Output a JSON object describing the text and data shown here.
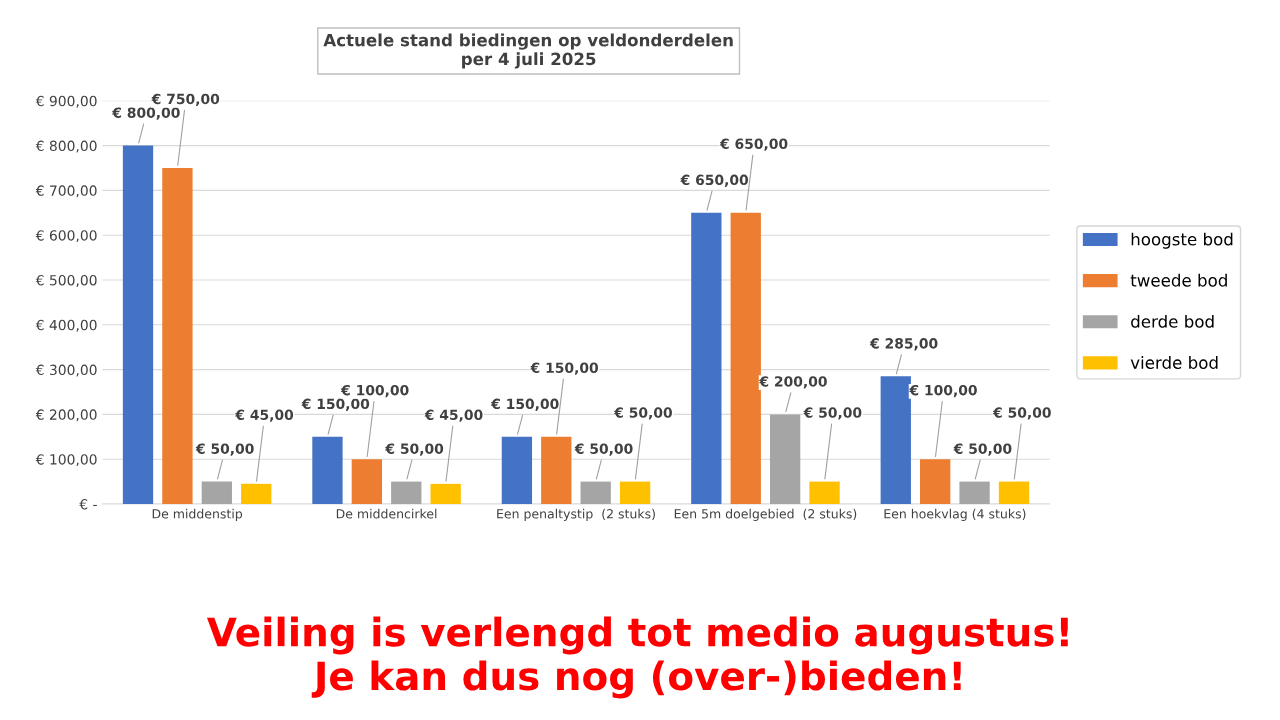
{
  "chart_data": {
    "type": "bar",
    "title": "Actuele stand biedingen op veldonderdelen\nper 4 juli 2025",
    "categories": [
      "De middenstip",
      "De middencirkel",
      "Een penaltystip  (2 stuks)",
      "Een 5m doelgebied  (2 stuks)",
      "Een hoekvlag (4 stuks)"
    ],
    "series": [
      {
        "name": "hoogste bod",
        "color": "#4472c4",
        "values": [
          800,
          150,
          150,
          650,
          285
        ],
        "value_labels": [
          "€ 800,00",
          "€ 150,00",
          "€ 150,00",
          "€ 650,00",
          "€ 285,00"
        ]
      },
      {
        "name": "tweede bod",
        "color": "#ed7d31",
        "values": [
          750,
          100,
          150,
          650,
          100
        ],
        "value_labels": [
          "€ 750,00",
          "€ 100,00",
          "€ 150,00",
          "€ 650,00",
          "€ 100,00"
        ]
      },
      {
        "name": "derde bod",
        "color": "#a5a5a5",
        "values": [
          50,
          50,
          50,
          200,
          50
        ],
        "value_labels": [
          "€ 50,00",
          "€ 50,00",
          "€ 50,00",
          "€ 200,00",
          "€ 50,00"
        ]
      },
      {
        "name": "vierde bod",
        "color": "#ffc000",
        "values": [
          45,
          45,
          50,
          50,
          50
        ],
        "value_labels": [
          "€ 45,00",
          "€ 45,00",
          "€ 50,00",
          "€ 50,00",
          "€ 50,00"
        ]
      }
    ],
    "ylim": [
      0,
      900
    ],
    "yticks": [
      {
        "value": 0,
        "label": "€ -"
      },
      {
        "value": 100,
        "label": "€ 100,00"
      },
      {
        "value": 200,
        "label": "€ 200,00"
      },
      {
        "value": 300,
        "label": "€ 300,00"
      },
      {
        "value": 400,
        "label": "€ 400,00"
      },
      {
        "value": 500,
        "label": "€ 500,00"
      },
      {
        "value": 600,
        "label": "€ 600,00"
      },
      {
        "value": 700,
        "label": "€ 700,00"
      },
      {
        "value": 800,
        "label": "€ 800,00"
      },
      {
        "value": 900,
        "label": "€ 900,00"
      }
    ],
    "grid": "y",
    "legend": "right",
    "annotations": [
      "Veiling is verlengd tot medio augustus!\nJe kan dus nog (over-)bieden!"
    ]
  }
}
